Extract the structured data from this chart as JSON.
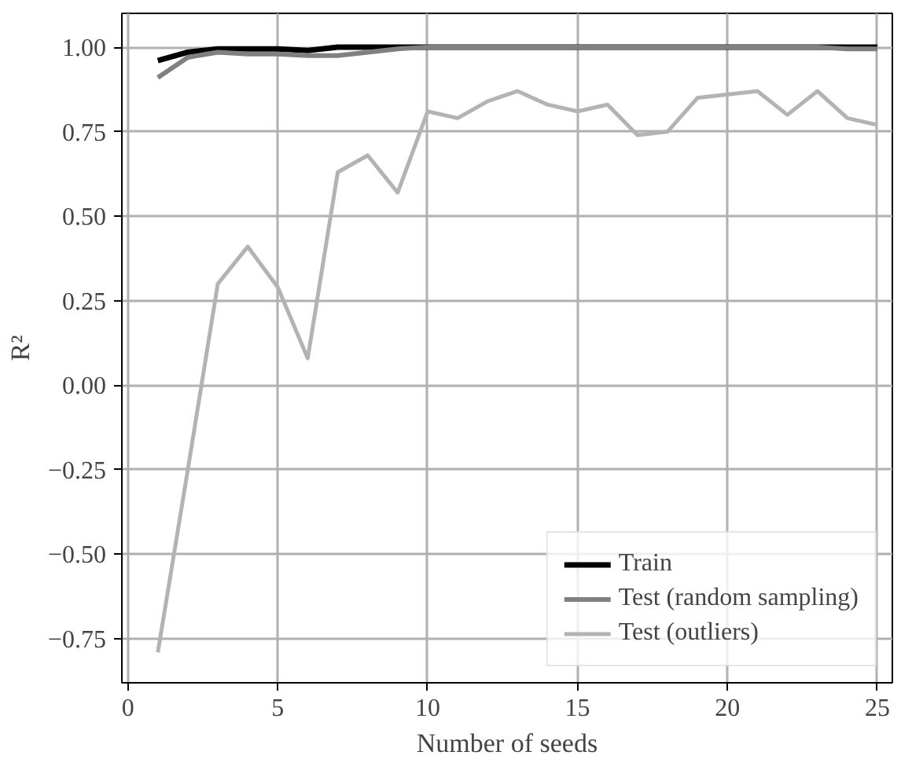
{
  "chart_data": {
    "type": "line",
    "xlabel": "Number of seeds",
    "ylabel": "R²",
    "x": [
      1,
      2,
      3,
      4,
      5,
      6,
      7,
      8,
      9,
      10,
      11,
      12,
      13,
      14,
      15,
      16,
      17,
      18,
      19,
      20,
      21,
      22,
      23,
      24,
      25
    ],
    "series": [
      {
        "name": "Train",
        "color": "#000000",
        "values": [
          0.96,
          0.985,
          0.995,
          0.995,
          0.995,
          0.99,
          1.0,
          1.0,
          1.0,
          1.0,
          1.0,
          1.0,
          1.0,
          1.0,
          1.0,
          1.0,
          1.0,
          1.0,
          1.0,
          1.0,
          1.0,
          1.0,
          1.0,
          1.0,
          1.0
        ]
      },
      {
        "name": "Test (random sampling)",
        "color": "#808080",
        "values": [
          0.91,
          0.97,
          0.985,
          0.98,
          0.98,
          0.975,
          0.975,
          0.985,
          0.995,
          1.0,
          1.0,
          1.0,
          1.0,
          1.0,
          1.0,
          1.0,
          1.0,
          1.0,
          1.0,
          1.0,
          1.0,
          1.0,
          1.0,
          0.995,
          0.995
        ]
      },
      {
        "name": "Test (outliers)",
        "color": "#b3b3b3",
        "values": [
          -0.79,
          -0.25,
          0.3,
          0.41,
          0.29,
          0.08,
          0.63,
          0.68,
          0.57,
          0.81,
          0.79,
          0.84,
          0.87,
          0.83,
          0.81,
          0.83,
          0.74,
          0.75,
          0.85,
          0.86,
          0.87,
          0.8,
          0.87,
          0.79,
          0.77
        ]
      }
    ],
    "xlim": [
      -0.2,
      25.5
    ],
    "ylim": [
      -0.88,
      1.1
    ],
    "xticks": [
      0,
      5,
      10,
      15,
      20,
      25
    ],
    "yticks": [
      {
        "value": -0.75,
        "label": "−0.75"
      },
      {
        "value": -0.5,
        "label": "−0.50"
      },
      {
        "value": -0.25,
        "label": "−0.25"
      },
      {
        "value": 0,
        "label": "0.00"
      },
      {
        "value": 0.25,
        "label": "0.25"
      },
      {
        "value": 0.5,
        "label": "0.50"
      },
      {
        "value": 0.75,
        "label": "0.75"
      },
      {
        "value": 1,
        "label": "1.00"
      }
    ],
    "grid": true,
    "legend": "bottom right",
    "line_style": "solid",
    "marker": "none"
  }
}
